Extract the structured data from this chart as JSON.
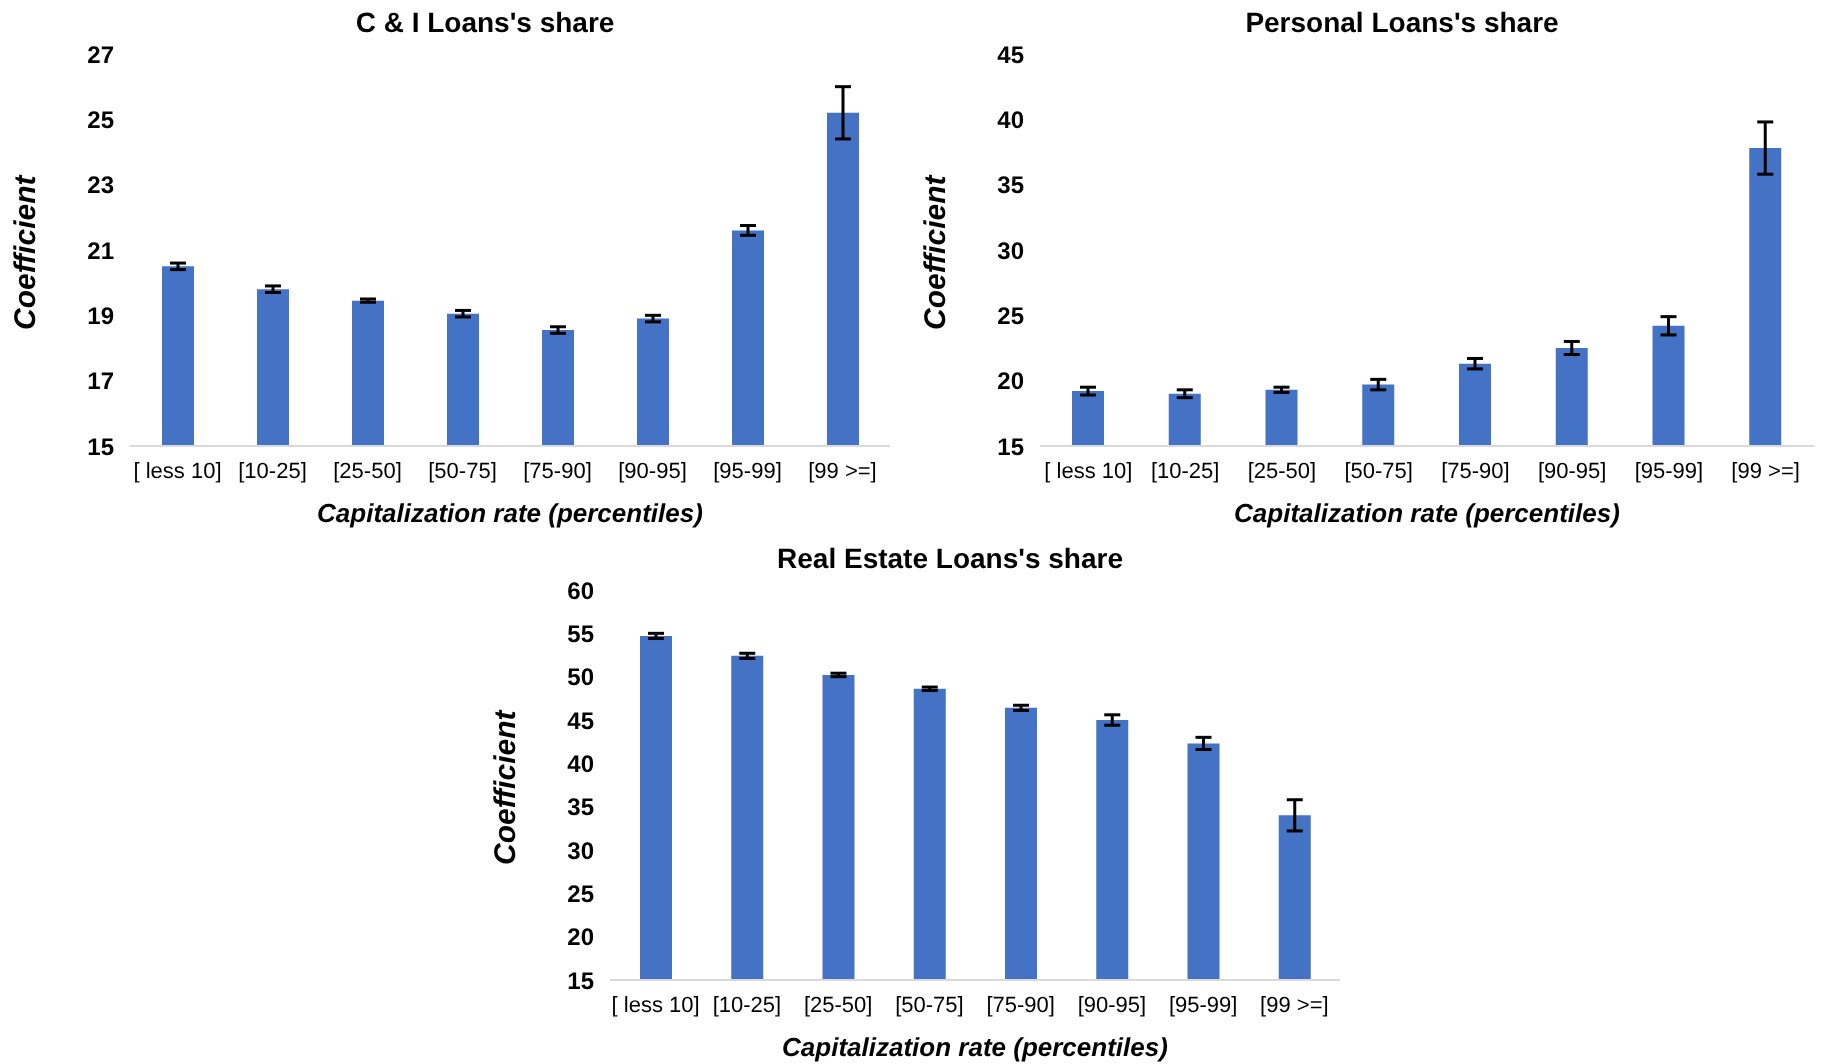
{
  "chart_data": [
    {
      "type": "bar",
      "title": "C & I  Loans's share",
      "xlabel": "Capitalization rate (percentiles)",
      "ylabel": "Coefficient",
      "categories": [
        "[ less 10]",
        "[10-25]",
        "[25-50]",
        "[50-75]",
        "[75-90]",
        "[90-95]",
        "[95-99]",
        "[99 >=]"
      ],
      "color": "#4472c4",
      "values": [
        20.5,
        19.8,
        19.45,
        19.05,
        18.55,
        18.9,
        21.6,
        25.2
      ],
      "errors": [
        0.1,
        0.1,
        0.05,
        0.1,
        0.1,
        0.1,
        0.15,
        0.8
      ],
      "ylim": [
        15,
        27
      ],
      "yticks": [
        15,
        17,
        19,
        21,
        23,
        25,
        27
      ]
    },
    {
      "type": "bar",
      "title": "Personal Loans's share",
      "xlabel": "Capitalization rate (percentiles)",
      "ylabel": "Coefficient",
      "categories": [
        "[ less 10]",
        "[10-25]",
        "[25-50]",
        "[50-75]",
        "[75-90]",
        "[90-95]",
        "[95-99]",
        "[99 >=]"
      ],
      "color": "#4472c4",
      "values": [
        19.2,
        19.0,
        19.3,
        19.7,
        21.3,
        22.5,
        24.2,
        37.8
      ],
      "errors": [
        0.3,
        0.3,
        0.2,
        0.4,
        0.4,
        0.5,
        0.7,
        2.0
      ],
      "ylim": [
        15,
        45
      ],
      "yticks": [
        15,
        20,
        25,
        30,
        35,
        40,
        45
      ]
    },
    {
      "type": "bar",
      "title": "Real Estate Loans's share",
      "xlabel": "Capitalization rate (percentiles)",
      "ylabel": "Coefficient",
      "categories": [
        "[ less 10]",
        "[10-25]",
        "[25-50]",
        "[50-75]",
        "[75-90]",
        "[90-95]",
        "[95-99]",
        "[99 >=]"
      ],
      "color": "#4472c4",
      "values": [
        54.7,
        52.4,
        50.2,
        48.6,
        46.4,
        45.0,
        42.3,
        34.0
      ],
      "errors": [
        0.3,
        0.3,
        0.2,
        0.2,
        0.3,
        0.6,
        0.7,
        1.8
      ],
      "ylim": [
        15,
        60
      ],
      "yticks": [
        15,
        20,
        25,
        30,
        35,
        40,
        45,
        50,
        55,
        60
      ]
    }
  ]
}
